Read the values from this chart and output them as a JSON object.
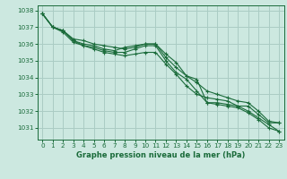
{
  "title": "Graphe pression niveau de la mer (hPa)",
  "background_color": "#cce8e0",
  "plot_bg_color": "#cce8e0",
  "grid_color": "#aaccc4",
  "line_color": "#1a6b3a",
  "spine_color": "#1a6b3a",
  "xlim": [
    -0.5,
    23.5
  ],
  "ylim": [
    1030.3,
    1038.3
  ],
  "yticks": [
    1031,
    1032,
    1033,
    1034,
    1035,
    1036,
    1037,
    1038
  ],
  "xticks": [
    0,
    1,
    2,
    3,
    4,
    5,
    6,
    7,
    8,
    9,
    10,
    11,
    12,
    13,
    14,
    15,
    16,
    17,
    18,
    19,
    20,
    21,
    22,
    23
  ],
  "series": [
    [
      1037.8,
      1037.0,
      1036.8,
      1036.2,
      1036.0,
      1035.9,
      1035.7,
      1035.6,
      1035.8,
      1035.9,
      1036.0,
      1036.0,
      1035.4,
      1034.9,
      1034.1,
      1033.9,
      1032.5,
      1032.4,
      1032.3,
      1032.2,
      1031.9,
      1031.5,
      1031.0,
      1030.8
    ],
    [
      1037.8,
      1037.0,
      1036.8,
      1036.3,
      1036.2,
      1036.0,
      1035.9,
      1035.8,
      1035.7,
      1035.8,
      1036.0,
      1036.0,
      1035.2,
      1034.6,
      1034.1,
      1033.7,
      1033.2,
      1033.0,
      1032.8,
      1032.6,
      1032.5,
      1032.0,
      1031.4,
      1031.3
    ],
    [
      1037.8,
      1037.0,
      1036.8,
      1036.2,
      1035.9,
      1035.8,
      1035.6,
      1035.5,
      1035.5,
      1035.7,
      1035.9,
      1035.9,
      1035.0,
      1034.3,
      1033.9,
      1033.2,
      1032.5,
      1032.5,
      1032.4,
      1032.3,
      1032.3,
      1031.8,
      1031.3,
      1031.3
    ],
    [
      1037.8,
      1037.0,
      1036.7,
      1036.1,
      1035.9,
      1035.7,
      1035.5,
      1035.4,
      1035.3,
      1035.4,
      1035.5,
      1035.5,
      1034.8,
      1034.2,
      1033.5,
      1033.0,
      1032.8,
      1032.7,
      1032.6,
      1032.3,
      1032.0,
      1031.6,
      1031.2,
      1030.8
    ]
  ]
}
